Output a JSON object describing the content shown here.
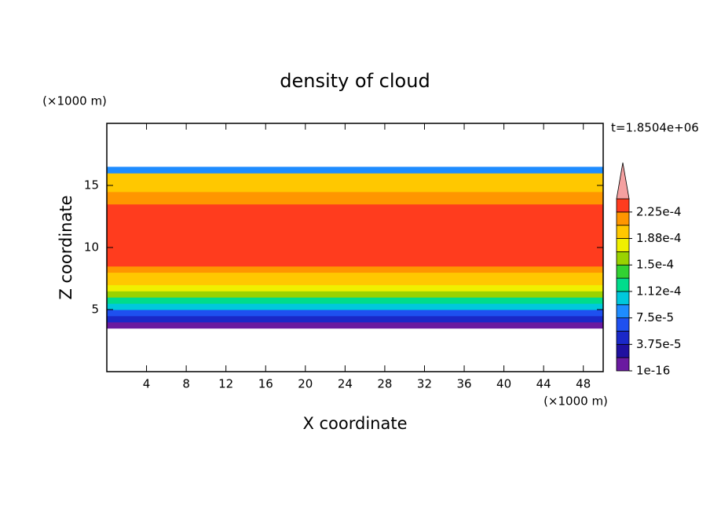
{
  "chart_data": {
    "type": "contour_profile",
    "title": "density of cloud",
    "xlabel": "X coordinate",
    "ylabel": "Z coordinate",
    "x_unit": "(×1000 m)",
    "y_unit": "(×1000 m)",
    "annotation": "t=1.8504e+06",
    "xlim": [
      0,
      50
    ],
    "ylim": [
      0,
      20
    ],
    "xticks": [
      4,
      8,
      12,
      16,
      20,
      24,
      28,
      32,
      36,
      40,
      44,
      48
    ],
    "yticks": [
      5,
      10,
      15
    ],
    "zbins": [
      3.5,
      4,
      4.5,
      5,
      5.5,
      6,
      6.5,
      7,
      7.5,
      8,
      8.5,
      9,
      9.5,
      10,
      10.5,
      11,
      11.5,
      12,
      12.5,
      13,
      13.5,
      14,
      14.5,
      15,
      15.5,
      16,
      16.5
    ],
    "values": [
      5e-06,
      4.5e-05,
      7e-05,
      0.0001,
      0.000125,
      0.00015,
      0.000175,
      0.000195,
      0.000205,
      0.000215,
      0.00023,
      0.00023,
      0.00023,
      0.00023,
      0.00023,
      0.00023,
      0.00023,
      0.00023,
      0.00023,
      0.000225,
      0.000215,
      0.00021,
      0.000205,
      0.0002,
      0.00019,
      8e-05
    ],
    "colorbar": {
      "levels": [
        1e-16,
        1.875e-05,
        3.75e-05,
        5.625e-05,
        7.5e-05,
        9.375e-05,
        0.0001125,
        0.00013125,
        0.00015,
        0.00016875,
        0.0001875,
        0.00020625,
        0.000225,
        0.00024375
      ],
      "colors": [
        "#6a1aa0",
        "#2010a0",
        "#1a28c8",
        "#1e50f0",
        "#1e8cff",
        "#00c8dc",
        "#00dc8c",
        "#32d232",
        "#9ad200",
        "#f0f000",
        "#ffc800",
        "#ff9600",
        "#ff3c1e"
      ],
      "over_color": "#f4a0a0",
      "ticks": [
        {
          "value": 1e-16,
          "label": "1e-16"
        },
        {
          "value": 3.75e-05,
          "label": "3.75e-5"
        },
        {
          "value": 7.5e-05,
          "label": "7.5e-5"
        },
        {
          "value": 0.0001125,
          "label": "1.12e-4"
        },
        {
          "value": 0.00015,
          "label": "1.5e-4"
        },
        {
          "value": 0.0001875,
          "label": "1.88e-4"
        },
        {
          "value": 0.000225,
          "label": "2.25e-4"
        }
      ]
    }
  }
}
